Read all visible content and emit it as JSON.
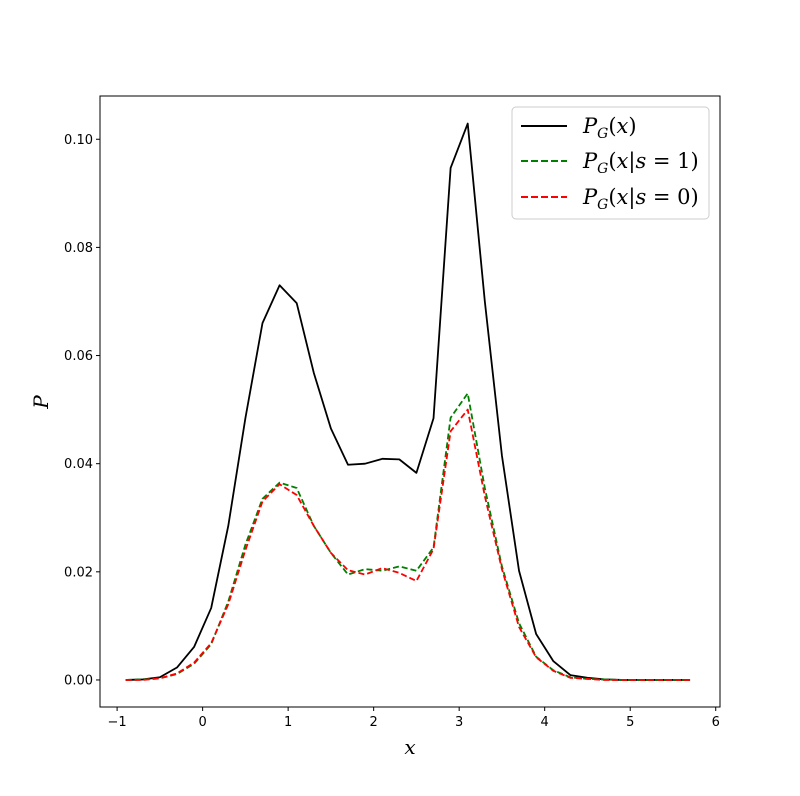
{
  "chart_data": {
    "type": "line",
    "xlabel": "x",
    "ylabel": "P",
    "xlim": [
      -1.2,
      6.05
    ],
    "ylim": [
      -0.005,
      0.108
    ],
    "xticks": [
      -1,
      0,
      1,
      2,
      3,
      4,
      5,
      6
    ],
    "yticks": [
      0.0,
      0.02,
      0.04,
      0.06,
      0.08,
      0.1
    ],
    "xtick_labels": [
      "−1",
      "0",
      "1",
      "2",
      "3",
      "4",
      "5",
      "6"
    ],
    "ytick_labels": [
      "0.00",
      "0.02",
      "0.04",
      "0.06",
      "0.08",
      "0.10"
    ],
    "grid": false,
    "legend_position": "top-right",
    "x": [
      -0.9,
      -0.7,
      -0.5,
      -0.3,
      -0.1,
      0.1,
      0.3,
      0.5,
      0.7,
      0.9,
      1.1,
      1.3,
      1.5,
      1.7,
      1.9,
      2.1,
      2.3,
      2.5,
      2.7,
      2.9,
      3.1,
      3.3,
      3.5,
      3.7,
      3.9,
      4.1,
      4.3,
      4.5,
      4.7,
      4.9,
      5.1,
      5.3,
      5.5,
      5.7
    ],
    "series": [
      {
        "name": "P_G(x)",
        "color": "#000000",
        "dash": "solid",
        "values": [
          0.0,
          0.0001,
          0.0005,
          0.0023,
          0.0061,
          0.0133,
          0.0285,
          0.0484,
          0.066,
          0.073,
          0.0697,
          0.0568,
          0.0465,
          0.0398,
          0.04,
          0.0409,
          0.0408,
          0.0383,
          0.0484,
          0.0947,
          0.1029,
          0.07,
          0.0415,
          0.0202,
          0.0085,
          0.0035,
          0.0009,
          0.0004,
          0.0001,
          0.0,
          0.0,
          0.0,
          0.0,
          0.0
        ]
      },
      {
        "name": "P_G(x|s=1)",
        "color": "#008000",
        "dash": "dashed",
        "values": [
          0.0,
          0.0001,
          0.0003,
          0.0011,
          0.003,
          0.0066,
          0.0145,
          0.025,
          0.0335,
          0.0365,
          0.0355,
          0.0285,
          0.0235,
          0.0195,
          0.0205,
          0.0202,
          0.021,
          0.0202,
          0.0245,
          0.0485,
          0.053,
          0.0355,
          0.021,
          0.0105,
          0.0043,
          0.0018,
          0.0005,
          0.0002,
          0.0001,
          0.0,
          0.0,
          0.0,
          0.0,
          0.0
        ]
      },
      {
        "name": "P_G(x|s=0)",
        "color": "#ff0000",
        "dash": "dashed",
        "values": [
          0.0,
          0.0,
          0.0003,
          0.0012,
          0.0032,
          0.0068,
          0.014,
          0.024,
          0.033,
          0.0362,
          0.0342,
          0.0285,
          0.0235,
          0.0203,
          0.0195,
          0.0207,
          0.0198,
          0.0183,
          0.0242,
          0.046,
          0.05,
          0.034,
          0.0205,
          0.0098,
          0.0042,
          0.0017,
          0.0004,
          0.0002,
          0.0,
          0.0,
          0.0,
          0.0,
          0.0,
          0.0
        ]
      }
    ]
  }
}
